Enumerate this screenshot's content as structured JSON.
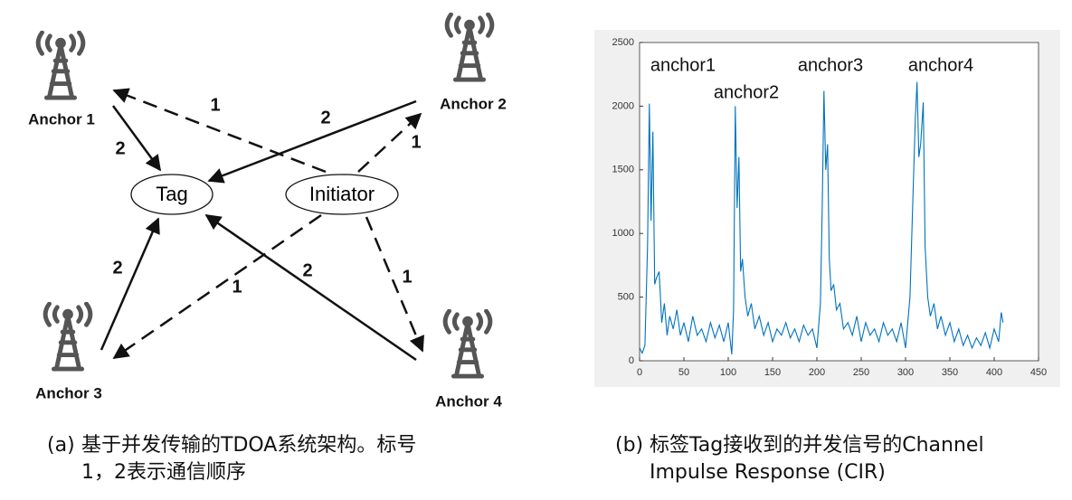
{
  "diagram": {
    "anchors": [
      {
        "label": "Anchor 1"
      },
      {
        "label": "Anchor 2"
      },
      {
        "label": "Anchor 3"
      },
      {
        "label": "Anchor 4"
      }
    ],
    "tag": "Tag",
    "initiator": "Initiator",
    "edges": [
      {
        "label": "1"
      },
      {
        "label": "1"
      },
      {
        "label": "1"
      },
      {
        "label": "1"
      },
      {
        "label": "2"
      },
      {
        "label": "2"
      },
      {
        "label": "2"
      },
      {
        "label": "2"
      }
    ]
  },
  "captions": [
    {
      "label": "(a)",
      "text": "基于并发传输的TDOA系统架构。标号1，2表示通信顺序"
    },
    {
      "label": "(b)",
      "text": "标签Tag接收到的并发信号的Channel Impulse Response (CIR)"
    }
  ],
  "chart_data": {
    "type": "line",
    "annotations": [
      "anchor1",
      "anchor2",
      "anchor3",
      "anchor4"
    ],
    "x": [
      0,
      3,
      6,
      9,
      11,
      13,
      15,
      17,
      19,
      22,
      25,
      28,
      31,
      34,
      38,
      42,
      46,
      50,
      55,
      60,
      65,
      70,
      75,
      80,
      85,
      90,
      95,
      100,
      104,
      106,
      108,
      110,
      112,
      114,
      116,
      119,
      122,
      126,
      130,
      135,
      140,
      145,
      150,
      155,
      160,
      165,
      170,
      175,
      180,
      185,
      190,
      195,
      200,
      204,
      206,
      208,
      210,
      212,
      214,
      216,
      219,
      222,
      226,
      230,
      235,
      240,
      245,
      250,
      255,
      260,
      265,
      270,
      275,
      280,
      285,
      290,
      295,
      300,
      305,
      308,
      311,
      313,
      315,
      317,
      320,
      322,
      325,
      328,
      332,
      336,
      340,
      345,
      350,
      355,
      360,
      365,
      370,
      375,
      380,
      385,
      390,
      395,
      400,
      405,
      408,
      410
    ],
    "series": [
      {
        "color": "#0072bd",
        "values": [
          100,
          60,
          120,
          900,
          2020,
          1100,
          1800,
          600,
          650,
          700,
          300,
          450,
          200,
          350,
          250,
          400,
          200,
          300,
          150,
          350,
          200,
          250,
          150,
          300,
          180,
          280,
          150,
          300,
          50,
          400,
          2000,
          1200,
          1600,
          700,
          800,
          500,
          350,
          450,
          250,
          350,
          200,
          300,
          150,
          250,
          200,
          300,
          180,
          250,
          150,
          280,
          200,
          250,
          100,
          450,
          1200,
          2120,
          1500,
          1700,
          800,
          550,
          600,
          400,
          450,
          250,
          300,
          200,
          350,
          150,
          300,
          200,
          250,
          150,
          300,
          200,
          250,
          150,
          300,
          100,
          500,
          1200,
          1900,
          2190,
          1600,
          1700,
          2030,
          900,
          500,
          350,
          450,
          250,
          350,
          200,
          300,
          150,
          250,
          120,
          200,
          100,
          180,
          120,
          220,
          100,
          250,
          150,
          380,
          300
        ]
      }
    ],
    "xlim": [
      0,
      450
    ],
    "xticks": [
      0,
      50,
      100,
      150,
      200,
      250,
      300,
      350,
      400,
      450
    ],
    "ylim": [
      0,
      2500
    ],
    "yticks": [
      0,
      500,
      1000,
      1500,
      2000,
      2500
    ]
  }
}
